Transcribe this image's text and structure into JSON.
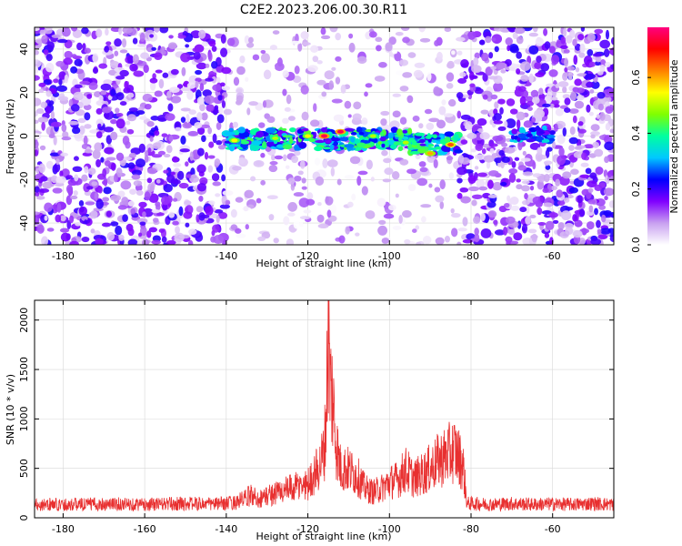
{
  "figure": {
    "title": "C2E2.2023.206.00.30.R11"
  },
  "chart_data": [
    {
      "type": "heatmap",
      "title": "C2E2.2023.206.00.30.R11",
      "xlabel": "Height of straight line (km)",
      "ylabel": "Frequency (Hz)",
      "xlim": [
        -187,
        -45
      ],
      "ylim": [
        -50,
        50
      ],
      "x_ticks": [
        -180,
        -160,
        -140,
        -120,
        -100,
        -80,
        -60
      ],
      "y_ticks": [
        -40,
        -20,
        0,
        20,
        40
      ],
      "grid": true,
      "colorbar": {
        "label": "Normalized spectral amplitude",
        "range": [
          0,
          0.78
        ],
        "ticks": [
          0.0,
          0.2,
          0.4,
          0.6
        ],
        "colors": [
          "#ffffff",
          "#c8a0f0",
          "#8000ff",
          "#0000ff",
          "#00c8ff",
          "#00ffa0",
          "#80ff00",
          "#ffff00",
          "#ff8000",
          "#ff0000",
          "#ff0080"
        ]
      },
      "regions": [
        {
          "x_range": [
            -187,
            -140
          ],
          "freq_range": [
            -50,
            50
          ],
          "level": "dense noise (0.05–0.2)"
        },
        {
          "x_range": [
            -140,
            -83
          ],
          "freq_range": [
            -8,
            4
          ],
          "level": "signal band (0.2–0.7)"
        },
        {
          "x_range": [
            -140,
            -83
          ],
          "freq_range": [
            -50,
            50
          ],
          "level": "sparse noise (0–0.1)"
        },
        {
          "x_range": [
            -83,
            -45
          ],
          "freq_range": [
            -50,
            50
          ],
          "level": "dense noise (0.05–0.2)"
        },
        {
          "x_range": [
            -70,
            -60
          ],
          "freq_range": [
            -4,
            6
          ],
          "level": "weak signal (0.2–0.35)"
        }
      ],
      "peaks": [
        {
          "x": -138,
          "freq": -2,
          "value": 0.55
        },
        {
          "x": -128,
          "freq": -1,
          "value": 0.5
        },
        {
          "x": -120,
          "freq": 0,
          "value": 0.55
        },
        {
          "x": -116,
          "freq": 0,
          "value": 0.75
        },
        {
          "x": -112,
          "freq": 2,
          "value": 0.75
        },
        {
          "x": -104,
          "freq": 0,
          "value": 0.5
        },
        {
          "x": -96,
          "freq": -3,
          "value": 0.5
        },
        {
          "x": -90,
          "freq": -8,
          "value": 0.6
        },
        {
          "x": -85,
          "freq": -4,
          "value": 0.65
        }
      ]
    },
    {
      "type": "line",
      "xlabel": "Height of straight line (km)",
      "ylabel": "SNR (10 * v/v)",
      "xlim": [
        -187,
        -45
      ],
      "ylim": [
        0,
        2200
      ],
      "x_ticks": [
        -180,
        -160,
        -140,
        -120,
        -100,
        -80,
        -60
      ],
      "y_ticks": [
        0,
        500,
        1000,
        1500,
        2000
      ],
      "grid": true,
      "line_color": "#e83030",
      "series": [
        {
          "x": [
            -187,
            -180,
            -170,
            -160,
            -150,
            -142,
            -138,
            -135,
            -134,
            -132,
            -128,
            -124,
            -120,
            -118,
            -117,
            -116,
            -115.5,
            -115,
            -114.5,
            -114,
            -113,
            -112,
            -110,
            -108,
            -106,
            -104,
            -102,
            -100,
            -98,
            -96,
            -94,
            -92,
            -90,
            -88,
            -86,
            -84,
            -82,
            -81,
            -80,
            -75,
            -70,
            -65,
            -60,
            -55,
            -50,
            -45
          ],
          "y": [
            150,
            150,
            155,
            150,
            160,
            155,
            170,
            220,
            260,
            210,
            280,
            330,
            380,
            520,
            600,
            760,
            1150,
            2200,
            1480,
            1380,
            820,
            560,
            540,
            480,
            330,
            290,
            330,
            400,
            430,
            540,
            440,
            490,
            560,
            640,
            700,
            760,
            600,
            160,
            160,
            150,
            160,
            150,
            155,
            150,
            160,
            150
          ]
        }
      ]
    }
  ]
}
